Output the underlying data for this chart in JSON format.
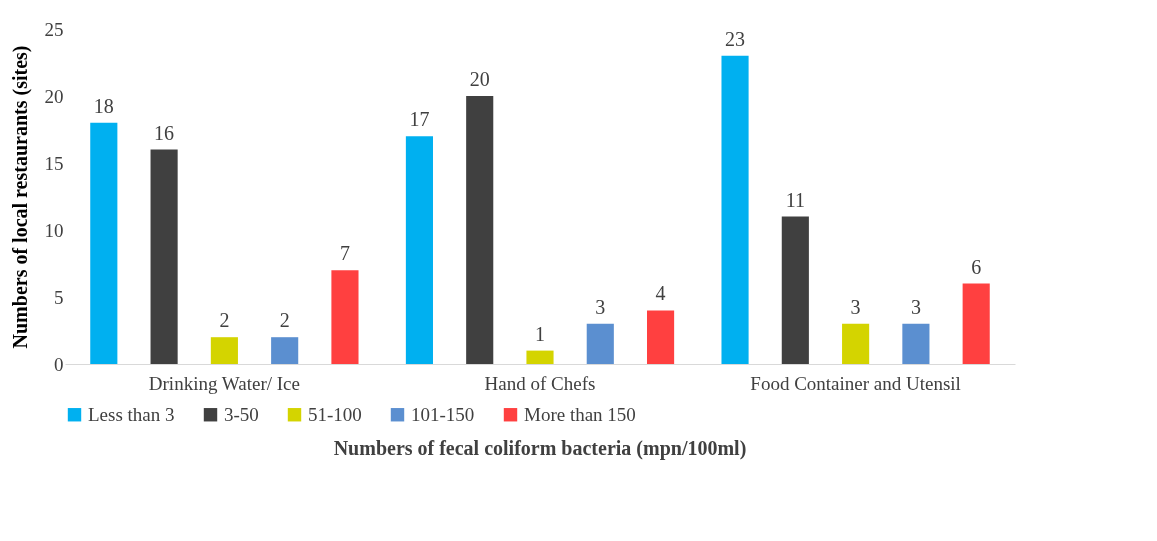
{
  "chart_data": {
    "type": "bar",
    "xlabel": "Numbers of fecal coliform bacteria (mpn/100ml)",
    "ylabel": "Numbers of  local restaurants (sites)",
    "categories": [
      "Drinking Water/ Ice",
      "Hand of Chefs",
      "Food Container and Utensil"
    ],
    "series": [
      {
        "name": "Less than 3",
        "color": "#00b0f0",
        "values": [
          18,
          17,
          23
        ]
      },
      {
        "name": "3-50",
        "color": "#404040",
        "values": [
          16,
          20,
          11
        ]
      },
      {
        "name": "51-100",
        "color": "#d4d400",
        "values": [
          2,
          1,
          3
        ]
      },
      {
        "name": "101-150",
        "color": "#5b8fd0",
        "values": [
          2,
          3,
          3
        ]
      },
      {
        "name": "More than 150",
        "color": "#ff4040",
        "values": [
          7,
          4,
          6
        ]
      }
    ],
    "ylim": [
      0,
      25
    ],
    "yticks": [
      0,
      5,
      10,
      15,
      20,
      25
    ],
    "grid": false,
    "legend": "bottom",
    "data_labels": true
  }
}
